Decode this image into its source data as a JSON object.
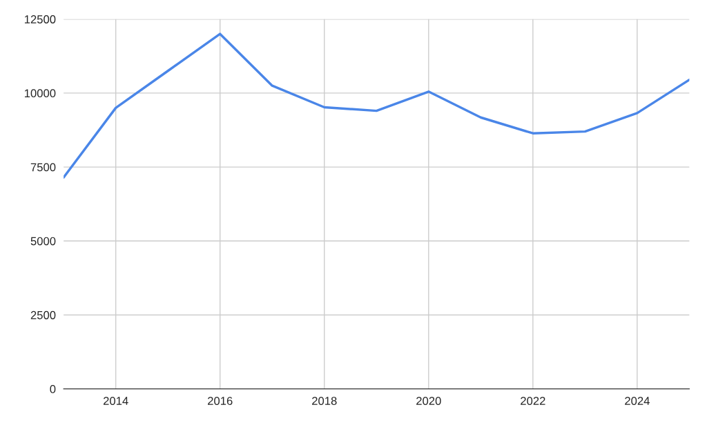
{
  "chart_data": {
    "type": "line",
    "x": [
      2013,
      2014,
      2015,
      2016,
      2017,
      2018,
      2019,
      2020,
      2021,
      2022,
      2023,
      2024,
      2025
    ],
    "series": [
      {
        "color": "#4a86e8",
        "values": [
          7150,
          9500,
          10750,
          12000,
          10250,
          9520,
          9400,
          10050,
          9175,
          8640,
          8700,
          9325,
          10450
        ]
      }
    ],
    "xlim": [
      2013,
      2025
    ],
    "xticks": [
      2014,
      2016,
      2018,
      2020,
      2022,
      2024
    ],
    "ylim": [
      0,
      12500
    ],
    "yticks": [
      0,
      2500,
      5000,
      7500,
      10000,
      12500
    ],
    "grid": true,
    "marker": "none",
    "line_style": "solid"
  }
}
